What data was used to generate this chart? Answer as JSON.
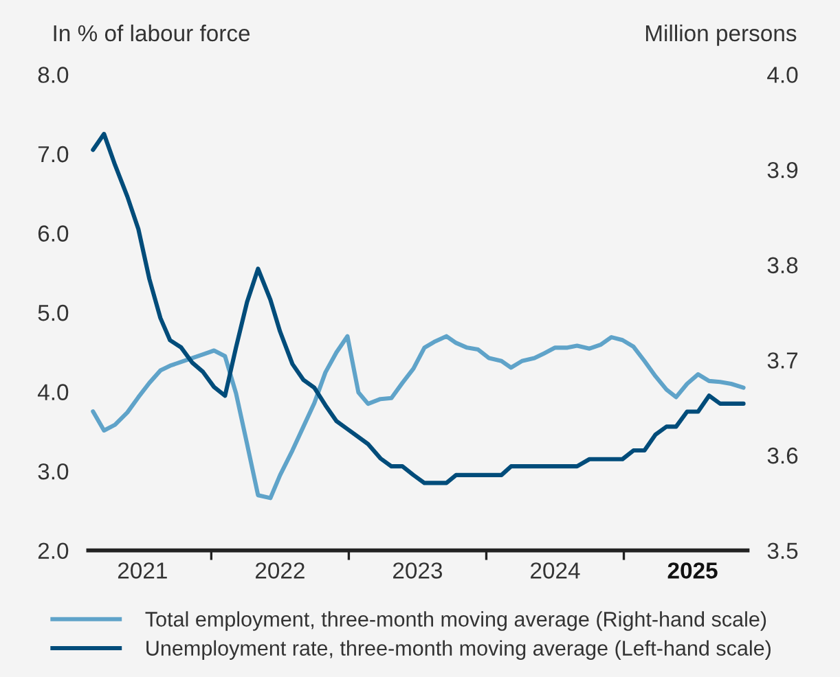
{
  "chart_data": {
    "type": "line",
    "ylabel": "In % of labour force",
    "y2label": "Million persons",
    "xlim": [
      2021.105,
      2025.9
    ],
    "xticks": [
      {
        "value": 2021.5,
        "label": "2021"
      },
      {
        "value": 2022,
        "label": null
      },
      {
        "value": 2022.5,
        "label": "2022"
      },
      {
        "value": 2023,
        "label": null
      },
      {
        "value": 2023.5,
        "label": "2023"
      },
      {
        "value": 2024,
        "label": null
      },
      {
        "value": 2024.5,
        "label": "2024"
      },
      {
        "value": 2025,
        "label": null
      },
      {
        "value": 2025.5,
        "label": "2025"
      }
    ],
    "ylim": [
      2.0,
      8.0
    ],
    "yticks": [
      {
        "value": 2,
        "label": "2.0"
      },
      {
        "value": 3,
        "label": "3.0"
      },
      {
        "value": 4,
        "label": "4.0"
      },
      {
        "value": 5,
        "label": "5.0"
      },
      {
        "value": 6,
        "label": "6.0"
      },
      {
        "value": 7,
        "label": "7.0"
      },
      {
        "value": 8,
        "label": "8.0"
      }
    ],
    "y2lim": [
      3.5,
      4.0
    ],
    "y2ticks": [
      3.5,
      3.6,
      3.7,
      3.8,
      3.9,
      {
        "value": 4,
        "label": "4.0"
      }
    ],
    "grid": false,
    "legend": "bottom",
    "marker": "none",
    "line_style": "solid",
    "series": [
      {
        "name": "Total employment, three-month moving average (Right-hand scale)",
        "color": "#5fa3c9",
        "axis": "y2",
        "x": [
          2021.14,
          2021.22,
          2021.3,
          2021.39,
          2021.47,
          2021.55,
          2021.63,
          2021.7,
          2021.78,
          2021.86,
          2021.94,
          2022.02,
          2022.1,
          2022.18,
          2022.26,
          2022.34,
          2022.43,
          2022.5,
          2022.59,
          2022.67,
          2022.75,
          2022.83,
          2022.91,
          2022.99,
          2023.07,
          2023.14,
          2023.23,
          2023.31,
          2023.39,
          2023.47,
          2023.55,
          2023.62,
          2023.71,
          2023.78,
          2023.86,
          2023.94,
          2024.02,
          2024.11,
          2024.18,
          2024.26,
          2024.35,
          2024.42,
          2024.5,
          2024.59,
          2024.66,
          2024.75,
          2024.83,
          2024.91,
          2024.99,
          2025.07,
          2025.15,
          2025.23,
          2025.31,
          2025.38,
          2025.46,
          2025.54,
          2025.62,
          2025.7,
          2025.78,
          2025.87
        ],
        "values": [
          3.646,
          3.626,
          3.632,
          3.645,
          3.661,
          3.676,
          3.689,
          3.694,
          3.698,
          3.702,
          3.706,
          3.71,
          3.704,
          3.665,
          3.612,
          3.558,
          3.555,
          3.579,
          3.605,
          3.63,
          3.655,
          3.687,
          3.708,
          3.725,
          3.666,
          3.654,
          3.659,
          3.66,
          3.676,
          3.691,
          3.713,
          3.719,
          3.725,
          3.718,
          3.713,
          3.711,
          3.702,
          3.699,
          3.692,
          3.699,
          3.702,
          3.707,
          3.713,
          3.713,
          3.715,
          3.712,
          3.716,
          3.724,
          3.721,
          3.714,
          3.699,
          3.683,
          3.669,
          3.661,
          3.675,
          3.685,
          3.678,
          3.677,
          3.675,
          3.671
        ]
      },
      {
        "name": "Unemployment rate, three-month moving average (Left-hand scale)",
        "color": "#004c7a",
        "x": [
          2021.14,
          2021.22,
          2021.3,
          2021.39,
          2021.47,
          2021.55,
          2021.63,
          2021.7,
          2021.78,
          2021.86,
          2021.94,
          2022.02,
          2022.1,
          2022.18,
          2022.26,
          2022.34,
          2022.43,
          2022.5,
          2022.59,
          2022.67,
          2022.75,
          2022.83,
          2022.91,
          2022.99,
          2023.07,
          2023.14,
          2023.23,
          2023.31,
          2023.39,
          2023.47,
          2023.55,
          2023.62,
          2023.71,
          2023.78,
          2023.86,
          2023.94,
          2024.02,
          2024.11,
          2024.18,
          2024.26,
          2024.35,
          2024.42,
          2024.5,
          2024.59,
          2024.66,
          2024.75,
          2024.83,
          2024.91,
          2024.99,
          2025.07,
          2025.15,
          2025.23,
          2025.31,
          2025.38,
          2025.46,
          2025.54,
          2025.62,
          2025.7,
          2025.78,
          2025.87
        ],
        "values": [
          7.05,
          7.25,
          6.86,
          6.46,
          6.05,
          5.42,
          4.93,
          4.65,
          4.56,
          4.37,
          4.25,
          4.06,
          3.95,
          4.56,
          5.13,
          5.55,
          5.16,
          4.76,
          4.35,
          4.15,
          4.05,
          3.83,
          3.63,
          3.53,
          3.43,
          3.34,
          3.16,
          3.06,
          3.06,
          2.95,
          2.85,
          2.85,
          2.85,
          2.95,
          2.95,
          2.95,
          2.95,
          2.95,
          3.06,
          3.06,
          3.06,
          3.06,
          3.06,
          3.06,
          3.06,
          3.15,
          3.15,
          3.15,
          3.15,
          3.26,
          3.26,
          3.46,
          3.56,
          3.56,
          3.75,
          3.75,
          3.95,
          3.85,
          3.85,
          3.85
        ]
      }
    ]
  }
}
